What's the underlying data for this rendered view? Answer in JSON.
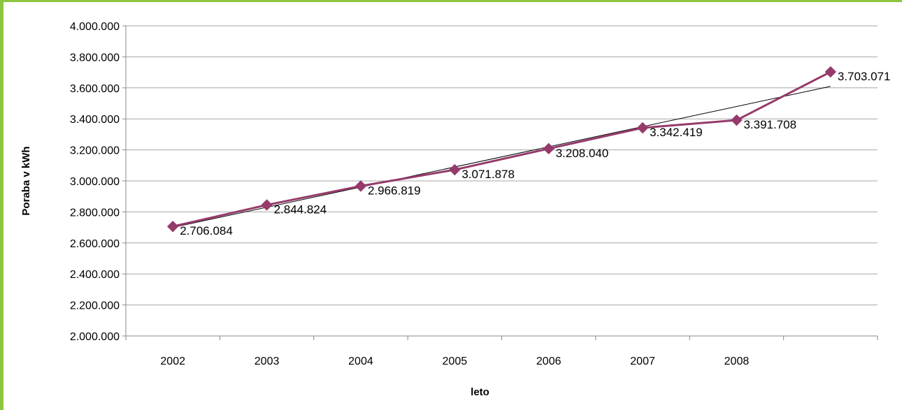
{
  "chart_data": {
    "type": "line",
    "title": "",
    "xlabel": "leto",
    "ylabel": "Poraba v kWh",
    "categories": [
      "2002",
      "2003",
      "2004",
      "2005",
      "2006",
      "2007",
      "2008",
      ""
    ],
    "series": [
      {
        "values": [
          2706084,
          2844824,
          2966819,
          3071878,
          3208040,
          3342419,
          3391708,
          3703071
        ]
      }
    ],
    "data_labels": [
      "2.706.084",
      "2.844.824",
      "2.966.819",
      "3.071.878",
      "3.208.040",
      "3.342.419",
      "3.391.708",
      "3.703.071"
    ],
    "y_tick_labels": [
      "2.000.000",
      "2.200.000",
      "2.400.000",
      "2.600.000",
      "2.800.000",
      "3.000.000",
      "3.200.000",
      "3.400.000",
      "3.600.000",
      "3.800.000",
      "4.000.000"
    ],
    "ylim": [
      2000000,
      4000000
    ],
    "y_step": 200000,
    "trendline": {
      "type": "linear",
      "y_start": 2700000,
      "y_end": 3610000
    },
    "grid": true,
    "legend": "none",
    "colors": {
      "series": "#953A6A",
      "trendline": "#000000",
      "grid": "#A6A6A6",
      "frame": "#8CC63F"
    }
  }
}
